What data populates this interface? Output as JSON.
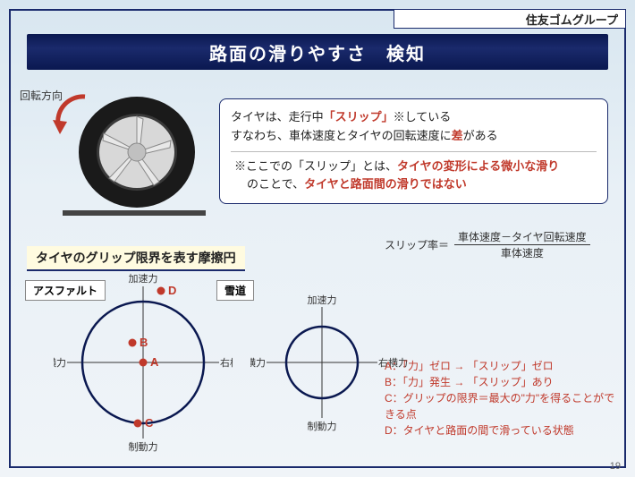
{
  "brand": "住友ゴムグループ",
  "title": "路面の滑りやすさ　検知",
  "rotation_label": "回転方向",
  "textbox": {
    "line1_pre": "タイヤは、走行中",
    "line1_slip": "「スリップ」",
    "line1_mark": "※",
    "line1_post": "している",
    "line2_pre": "すなわち、車体速度とタイヤの回転速度に",
    "line2_red": "差",
    "line2_post": "がある",
    "note_pre": "※ここでの「スリップ」とは、",
    "note_red1": "タイヤの変形による微小な滑り",
    "note_mid": "のことで、",
    "note_red2": "タイヤと路面間の滑りではない"
  },
  "formula": {
    "label": "スリップ率＝",
    "numerator": "車体速度－タイヤ回転速度",
    "denominator": "車体速度"
  },
  "section_label": "タイヤのグリップ限界を表す摩擦円",
  "sublabel_asphalt": "アスファルト",
  "sublabel_snow": "雪道",
  "axes": {
    "accel": "加速力",
    "brake": "制動力",
    "left": "左横力",
    "right": "右横力"
  },
  "asphalt_plot": {
    "circle_r": 68,
    "points": {
      "A": {
        "x": 0,
        "y": 0
      },
      "B": {
        "x": -12,
        "y": 22
      },
      "C": {
        "x": -6,
        "y": -68
      },
      "D": {
        "x": 20,
        "y": 80
      }
    }
  },
  "snow_plot": {
    "circle_r": 40
  },
  "legend": {
    "A": "A：「力」ゼロ → 「スリップ」ゼロ",
    "B": "B：「力」発生 → 「スリップ」あり",
    "C": "C：グリップの限界＝最大の\"力\"を得ることができる点",
    "D": "D：タイヤと路面の間で滑っている状態"
  },
  "colors": {
    "navy": "#1a2a6c",
    "red": "#c0392b",
    "point": "#c0392b",
    "circle_stroke": "#0a1850",
    "tire_dark": "#1a1a1a",
    "tire_light": "#d0d0d0"
  },
  "slide_number": "19"
}
